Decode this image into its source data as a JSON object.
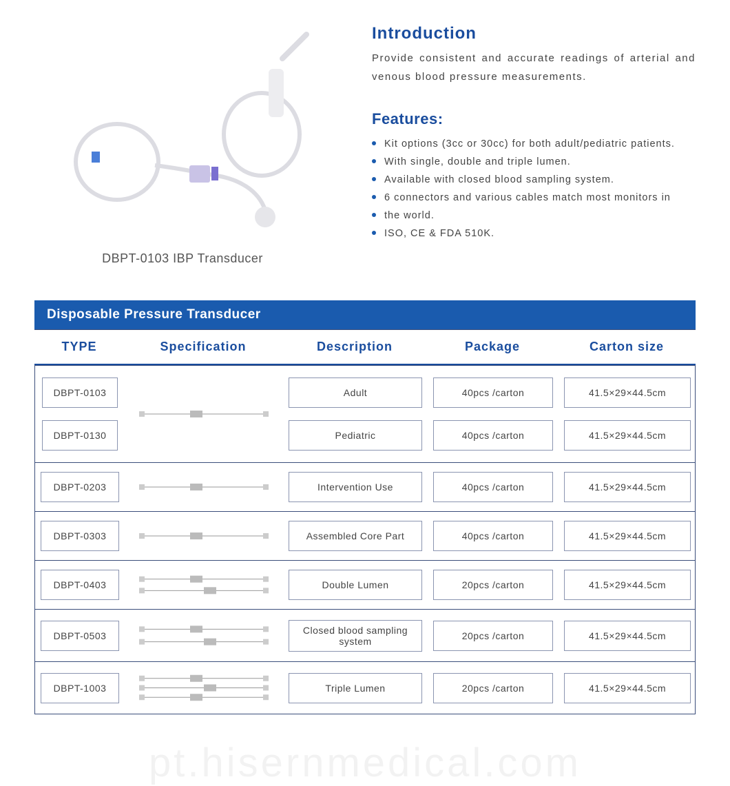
{
  "colors": {
    "brand_blue": "#1a4d9e",
    "header_blue": "#1a5bae",
    "text_dark": "#444444",
    "border_gray": "#3a4d7a",
    "cell_border": "#8a94b0",
    "bullet_blue": "#1a5bae",
    "bg": "#ffffff"
  },
  "product": {
    "caption": "DBPT-0103 IBP Transducer"
  },
  "intro": {
    "title": "Introduction",
    "text": "Provide consistent and accurate readings of arterial and venous blood pressure measurements."
  },
  "features": {
    "title": "Features:",
    "items": [
      "Kit options (3cc or 30cc) for both adult/pediatric patients.",
      "With single, double and triple lumen.",
      "Available with closed blood sampling system.",
      "6 connectors and various cables match most monitors in",
      "the world.",
      "ISO, CE & FDA 510K."
    ]
  },
  "table": {
    "section_title": "Disposable Pressure Transducer",
    "headers": [
      "TYPE",
      "Specification",
      "Description",
      "Package",
      "Carton  size"
    ],
    "groups": [
      {
        "types": [
          "DBPT-0103",
          "DBPT-0130"
        ],
        "descriptions": [
          "Adult",
          "Pediatric"
        ],
        "packages": [
          "40pcs /carton",
          "40pcs /carton"
        ],
        "cartons": [
          "41.5×29×44.5cm",
          "41.5×29×44.5cm"
        ],
        "spec_height": 120
      },
      {
        "types": [
          "DBPT-0203"
        ],
        "descriptions": [
          "Intervention Use"
        ],
        "packages": [
          "40pcs /carton"
        ],
        "cartons": [
          "41.5×29×44.5cm"
        ],
        "spec_height": 50
      },
      {
        "types": [
          "DBPT-0303"
        ],
        "descriptions": [
          "Assembled Core Part"
        ],
        "packages": [
          "40pcs /carton"
        ],
        "cartons": [
          "41.5×29×44.5cm"
        ],
        "spec_height": 50
      },
      {
        "types": [
          "DBPT-0403"
        ],
        "descriptions": [
          "Double Lumen"
        ],
        "packages": [
          "20pcs /carton"
        ],
        "cartons": [
          "41.5×29×44.5cm"
        ],
        "spec_height": 50
      },
      {
        "types": [
          "DBPT-0503"
        ],
        "descriptions": [
          "Closed blood sampling system"
        ],
        "packages": [
          "20pcs /carton"
        ],
        "cartons": [
          "41.5×29×44.5cm"
        ],
        "spec_height": 55
      },
      {
        "types": [
          "DBPT-1003"
        ],
        "descriptions": [
          "Triple Lumen"
        ],
        "packages": [
          "20pcs /carton"
        ],
        "cartons": [
          "41.5×29×44.5cm"
        ],
        "spec_height": 55
      }
    ]
  },
  "watermark": "pt.hisernmedical.com"
}
